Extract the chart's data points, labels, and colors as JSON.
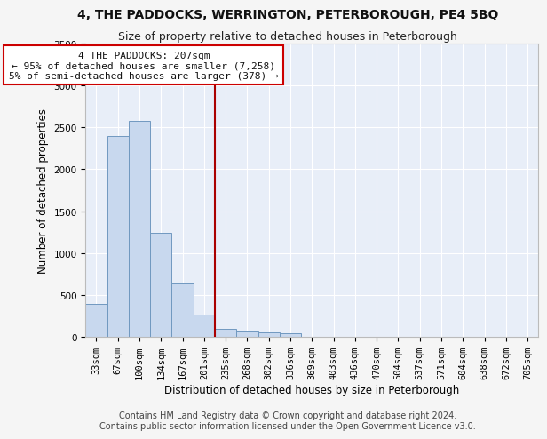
{
  "title": "4, THE PADDOCKS, WERRINGTON, PETERBOROUGH, PE4 5BQ",
  "subtitle": "Size of property relative to detached houses in Peterborough",
  "xlabel": "Distribution of detached houses by size in Peterborough",
  "ylabel": "Number of detached properties",
  "footer_line1": "Contains HM Land Registry data © Crown copyright and database right 2024.",
  "footer_line2": "Contains public sector information licensed under the Open Government Licence v3.0.",
  "bar_labels": [
    "33sqm",
    "67sqm",
    "100sqm",
    "134sqm",
    "167sqm",
    "201sqm",
    "235sqm",
    "268sqm",
    "302sqm",
    "336sqm",
    "369sqm",
    "403sqm",
    "436sqm",
    "470sqm",
    "504sqm",
    "537sqm",
    "571sqm",
    "604sqm",
    "638sqm",
    "672sqm",
    "705sqm"
  ],
  "bar_values": [
    390,
    2400,
    2580,
    1240,
    640,
    260,
    100,
    65,
    55,
    40,
    0,
    0,
    0,
    0,
    0,
    0,
    0,
    0,
    0,
    0,
    0
  ],
  "bar_color": "#c8d8ee",
  "bar_edge_color": "#7098c0",
  "vline_color": "#aa0000",
  "annotation_line1": "4 THE PADDOCKS: 207sqm",
  "annotation_line2": "← 95% of detached houses are smaller (7,258)",
  "annotation_line3": "5% of semi-detached houses are larger (378) →",
  "annotation_box_facecolor": "#ffffff",
  "annotation_box_edgecolor": "#cc0000",
  "ylim": [
    0,
    3500
  ],
  "yticks": [
    0,
    500,
    1000,
    1500,
    2000,
    2500,
    3000,
    3500
  ],
  "bg_color": "#e8eef8",
  "grid_color": "#ffffff",
  "fig_facecolor": "#f5f5f5",
  "title_fontsize": 10,
  "subtitle_fontsize": 9,
  "axis_label_fontsize": 8.5,
  "tick_fontsize": 7.5,
  "annotation_fontsize": 8,
  "footer_fontsize": 7
}
